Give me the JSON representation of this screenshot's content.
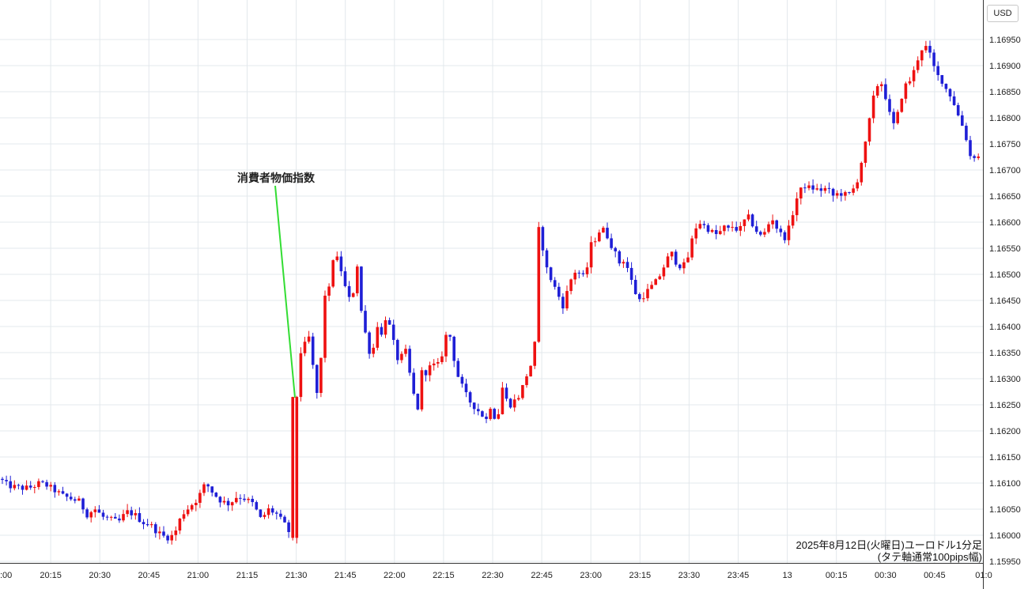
{
  "chart_data": {
    "type": "candlestick",
    "currency": "USD",
    "annotation": "消費者物価指数",
    "caption_line1": "2025年8月12日(火曜日)ユーロドル1分足",
    "caption_line2": "(タテ軸通常100pips幅)",
    "x_ticks": [
      ":00",
      "20:15",
      "20:30",
      "20:45",
      "21:00",
      "21:15",
      "21:30",
      "21:45",
      "22:00",
      "22:15",
      "22:30",
      "22:45",
      "23:00",
      "23:15",
      "23:30",
      "23:45",
      "13",
      "00:15",
      "00:30",
      "00:45",
      "01:0"
    ],
    "y_ticks": [
      "1.16950",
      "1.16900",
      "1.16850",
      "1.16800",
      "1.16750",
      "1.16700",
      "1.16650",
      "1.16600",
      "1.16550",
      "1.16500",
      "1.16450",
      "1.16400",
      "1.16350",
      "1.16300",
      "1.16250",
      "1.16200",
      "1.16150",
      "1.16100",
      "1.16050",
      "1.16000",
      "1.15950"
    ],
    "ylim": [
      1.15945,
      1.1698
    ],
    "colors": {
      "up": "#ee1111",
      "down": "#1f1fd6",
      "annotation_line": "#33dd33",
      "grid": "#e3e8ec"
    },
    "close_path": [
      [
        0,
        1.16108
      ],
      [
        10,
        1.16095
      ],
      [
        20,
        1.16092
      ],
      [
        30,
        1.1609
      ],
      [
        40,
        1.16092
      ],
      [
        50,
        1.161
      ],
      [
        60,
        1.16095
      ],
      [
        70,
        1.16085
      ],
      [
        80,
        1.16075
      ],
      [
        90,
        1.1607
      ],
      [
        100,
        1.16065
      ],
      [
        110,
        1.1604
      ],
      [
        120,
        1.1605
      ],
      [
        130,
        1.16035
      ],
      [
        140,
        1.1603
      ],
      [
        150,
        1.16025
      ],
      [
        160,
        1.16045
      ],
      [
        170,
        1.1604
      ],
      [
        180,
        1.16025
      ],
      [
        190,
        1.1602
      ],
      [
        200,
        1.16005
      ],
      [
        210,
        1.15995
      ],
      [
        220,
        1.16
      ],
      [
        230,
        1.1604
      ],
      [
        240,
        1.16055
      ],
      [
        250,
        1.1607
      ],
      [
        260,
        1.161
      ],
      [
        270,
        1.1608
      ],
      [
        280,
        1.16065
      ],
      [
        290,
        1.1606
      ],
      [
        300,
        1.16075
      ],
      [
        310,
        1.1607
      ],
      [
        320,
        1.1606
      ],
      [
        330,
        1.1603
      ],
      [
        340,
        1.1605
      ],
      [
        350,
        1.1604
      ],
      [
        360,
        1.1602
      ],
      [
        370,
        1.15995
      ],
      [
        373,
        1.16265
      ],
      [
        378,
        1.1638
      ],
      [
        383,
        1.1632
      ],
      [
        388,
        1.1641
      ],
      [
        393,
        1.1635
      ],
      [
        398,
        1.163
      ],
      [
        403,
        1.1625
      ],
      [
        410,
        1.1646
      ],
      [
        416,
        1.1647
      ],
      [
        422,
        1.1654
      ],
      [
        428,
        1.16525
      ],
      [
        433,
        1.165
      ],
      [
        440,
        1.1645
      ],
      [
        446,
        1.1646
      ],
      [
        452,
        1.1652
      ],
      [
        458,
        1.1641
      ],
      [
        465,
        1.1637
      ],
      [
        470,
        1.1633
      ],
      [
        476,
        1.1641
      ],
      [
        482,
        1.1638
      ],
      [
        488,
        1.1642
      ],
      [
        495,
        1.1639
      ],
      [
        500,
        1.1635
      ],
      [
        505,
        1.1633
      ],
      [
        512,
        1.1636
      ],
      [
        518,
        1.1631
      ],
      [
        523,
        1.1627
      ],
      [
        528,
        1.1624
      ],
      [
        534,
        1.1632
      ],
      [
        540,
        1.1631
      ],
      [
        546,
        1.1633
      ],
      [
        552,
        1.1632
      ],
      [
        558,
        1.1634
      ],
      [
        563,
        1.1638
      ],
      [
        568,
        1.1639
      ],
      [
        574,
        1.1634
      ],
      [
        580,
        1.163
      ],
      [
        586,
        1.1628
      ],
      [
        592,
        1.1626
      ],
      [
        598,
        1.1625
      ],
      [
        604,
        1.1624
      ],
      [
        610,
        1.1623
      ],
      [
        616,
        1.1622
      ],
      [
        622,
        1.1626
      ],
      [
        628,
        1.162
      ],
      [
        634,
        1.1629
      ],
      [
        640,
        1.1626
      ],
      [
        646,
        1.1625
      ],
      [
        652,
        1.1626
      ],
      [
        658,
        1.1627
      ],
      [
        664,
        1.163
      ],
      [
        670,
        1.1632
      ],
      [
        676,
        1.1635
      ],
      [
        679,
        1.1659
      ],
      [
        684,
        1.1658
      ],
      [
        689,
        1.1652
      ],
      [
        694,
        1.165
      ],
      [
        700,
        1.1648
      ],
      [
        706,
        1.1646
      ],
      [
        712,
        1.1644
      ],
      [
        718,
        1.1647
      ],
      [
        724,
        1.165
      ],
      [
        730,
        1.1651
      ],
      [
        736,
        1.1649
      ],
      [
        742,
        1.1651
      ],
      [
        748,
        1.1656
      ],
      [
        754,
        1.1657
      ],
      [
        760,
        1.1659
      ],
      [
        766,
        1.1658
      ],
      [
        772,
        1.1656
      ],
      [
        778,
        1.1654
      ],
      [
        784,
        1.1652
      ],
      [
        790,
        1.1653
      ],
      [
        796,
        1.165
      ],
      [
        802,
        1.1647
      ],
      [
        808,
        1.1645
      ],
      [
        814,
        1.1646
      ],
      [
        820,
        1.1647
      ],
      [
        826,
        1.1648
      ],
      [
        832,
        1.1649
      ],
      [
        838,
        1.1651
      ],
      [
        844,
        1.1653
      ],
      [
        850,
        1.1654
      ],
      [
        856,
        1.1652
      ],
      [
        862,
        1.16515
      ],
      [
        868,
        1.1652
      ],
      [
        874,
        1.1656
      ],
      [
        880,
        1.1659
      ],
      [
        886,
        1.166
      ],
      [
        892,
        1.1659
      ],
      [
        898,
        1.16585
      ],
      [
        904,
        1.16575
      ],
      [
        910,
        1.1658
      ],
      [
        916,
        1.1659
      ],
      [
        922,
        1.16585
      ],
      [
        928,
        1.16595
      ],
      [
        934,
        1.1658
      ],
      [
        940,
        1.166
      ],
      [
        946,
        1.1661
      ],
      [
        952,
        1.16595
      ],
      [
        958,
        1.1658
      ],
      [
        964,
        1.1657
      ],
      [
        970,
        1.1659
      ],
      [
        976,
        1.1661
      ],
      [
        982,
        1.1659
      ],
      [
        988,
        1.16575
      ],
      [
        994,
        1.1657
      ],
      [
        1000,
        1.166
      ],
      [
        1006,
        1.1664
      ],
      [
        1012,
        1.1666
      ],
      [
        1018,
        1.1667
      ],
      [
        1024,
        1.16665
      ],
      [
        1030,
        1.16665
      ],
      [
        1036,
        1.1666
      ],
      [
        1042,
        1.16665
      ],
      [
        1048,
        1.1666
      ],
      [
        1054,
        1.1665
      ],
      [
        1060,
        1.16655
      ],
      [
        1066,
        1.16655
      ],
      [
        1072,
        1.1665
      ],
      [
        1078,
        1.1666
      ],
      [
        1084,
        1.1668
      ],
      [
        1090,
        1.1672
      ],
      [
        1096,
        1.1676
      ],
      [
        1102,
        1.1682
      ],
      [
        1108,
        1.1686
      ],
      [
        1114,
        1.1687
      ],
      [
        1120,
        1.1684
      ],
      [
        1126,
        1.168
      ],
      [
        1132,
        1.1678
      ],
      [
        1138,
        1.1683
      ],
      [
        1144,
        1.1686
      ],
      [
        1150,
        1.1687
      ],
      [
        1156,
        1.1689
      ],
      [
        1162,
        1.1692
      ],
      [
        1168,
        1.1694
      ],
      [
        1174,
        1.1693
      ],
      [
        1180,
        1.169
      ],
      [
        1186,
        1.1688
      ],
      [
        1192,
        1.1687
      ],
      [
        1198,
        1.1685
      ],
      [
        1204,
        1.1684
      ],
      [
        1210,
        1.1681
      ],
      [
        1216,
        1.1679
      ],
      [
        1222,
        1.1676
      ],
      [
        1228,
        1.1672
      ],
      [
        1234,
        1.1673
      ],
      [
        1240,
        1.1672
      ]
    ]
  }
}
